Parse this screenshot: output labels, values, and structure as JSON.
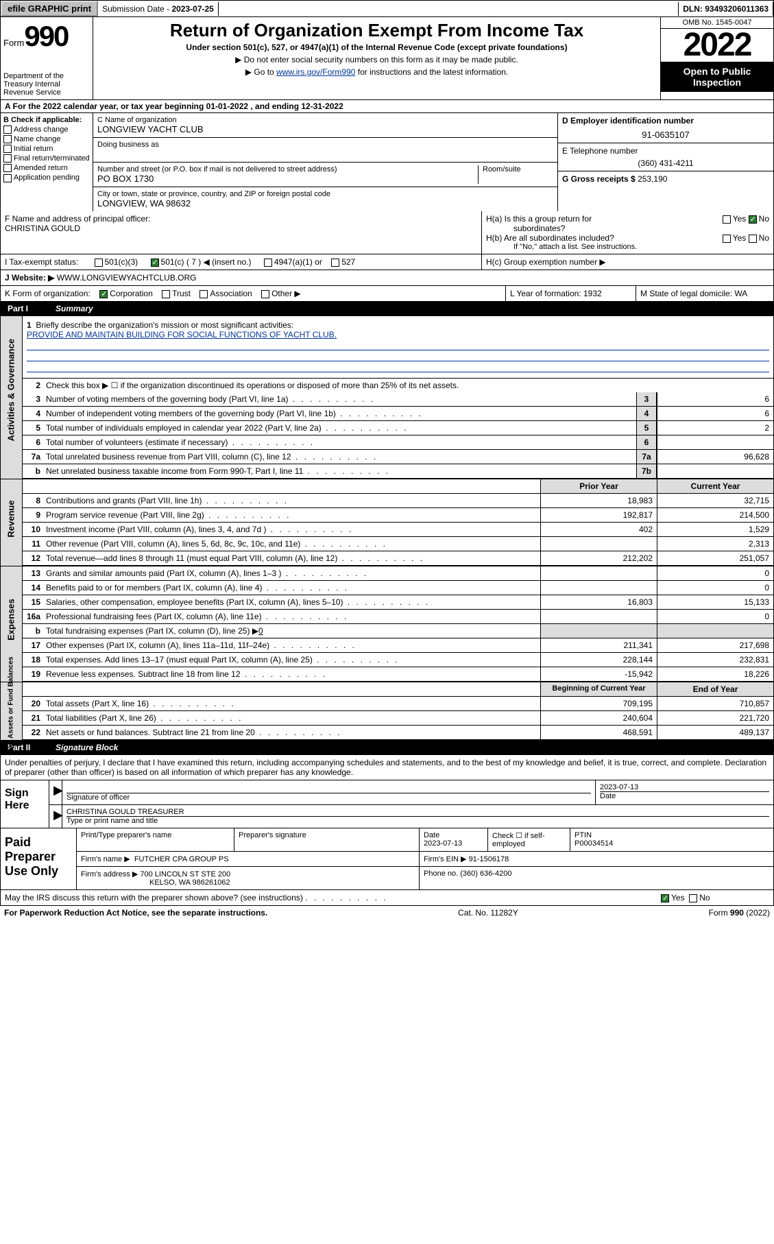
{
  "topbar": {
    "efile": "efile GRAPHIC print",
    "subdate_label": "Submission Date - ",
    "subdate": "2023-07-25",
    "dln": "DLN: 93493206011363"
  },
  "header": {
    "form_label": "Form",
    "form_num": "990",
    "dept": "Department of the Treasury Internal Revenue Service",
    "title": "Return of Organization Exempt From Income Tax",
    "sub": "Under section 501(c), 527, or 4947(a)(1) of the Internal Revenue Code (except private foundations)",
    "note1": "▶ Do not enter social security numbers on this form as it may be made public.",
    "note2_pre": "▶ Go to ",
    "note2_link": "www.irs.gov/Form990",
    "note2_post": " for instructions and the latest information.",
    "omb": "OMB No. 1545-0047",
    "year": "2022",
    "inspect": "Open to Public Inspection"
  },
  "row_a": "A For the 2022 calendar year, or tax year beginning 01-01-2022    , and ending 12-31-2022",
  "col_b": {
    "hdr": "B Check if applicable:",
    "items": [
      "Address change",
      "Name change",
      "Initial return",
      "Final return/terminated",
      "Amended return",
      "Application pending"
    ]
  },
  "org": {
    "c_label": "C Name of organization",
    "name": "LONGVIEW YACHT CLUB",
    "dba_label": "Doing business as",
    "addr_label": "Number and street (or P.O. box if mail is not delivered to street address)",
    "room_label": "Room/suite",
    "addr": "PO BOX 1730",
    "city_label": "City or town, state or province, country, and ZIP or foreign postal code",
    "city": "LONGVIEW, WA  98632"
  },
  "right": {
    "d_label": "D Employer identification number",
    "ein": "91-0635107",
    "e_label": "E Telephone number",
    "phone": "(360) 431-4211",
    "g_label": "G Gross receipts $ ",
    "gross": "253,190"
  },
  "officer": {
    "f_label": "F Name and address of principal officer:",
    "name": "CHRISTINA GOULD"
  },
  "h": {
    "a": "H(a)  Is this a group return for",
    "a2": "subordinates?",
    "b": "H(b)  Are all subordinates included?",
    "b_note": "If \"No,\" attach a list. See instructions.",
    "c": "H(c)  Group exemption number ▶"
  },
  "i": {
    "label": "I   Tax-exempt status:",
    "o1": "501(c)(3)",
    "o2": "501(c) ( 7 ) ◀ (insert no.)",
    "o3": "4947(a)(1) or",
    "o4": "527"
  },
  "j": {
    "label": "J   Website: ▶",
    "val": "WWW.LONGVIEWYACHTCLUB.ORG"
  },
  "k": {
    "label": "K Form of organization:",
    "o1": "Corporation",
    "o2": "Trust",
    "o3": "Association",
    "o4": "Other ▶"
  },
  "l": {
    "label": "L Year of formation: ",
    "val": "1932"
  },
  "m": {
    "label": "M State of legal domicile: ",
    "val": "WA"
  },
  "part1": {
    "num": "Part I",
    "title": "Summary"
  },
  "briefly": {
    "num": "1",
    "label": "Briefly describe the organization's mission or most significant activities:",
    "text": "PROVIDE AND MAINTAIN BUILDING FOR SOCIAL FUNCTIONS OF YACHT CLUB."
  },
  "line2": {
    "num": "2",
    "text": "Check this box ▶ ☐  if the organization discontinued its operations or disposed of more than 25% of its net assets."
  },
  "lines_gov": [
    {
      "n": "3",
      "d": "Number of voting members of the governing body (Part VI, line 1a)",
      "r": "3",
      "v": "6"
    },
    {
      "n": "4",
      "d": "Number of independent voting members of the governing body (Part VI, line 1b)",
      "r": "4",
      "v": "6"
    },
    {
      "n": "5",
      "d": "Total number of individuals employed in calendar year 2022 (Part V, line 2a)",
      "r": "5",
      "v": "2"
    },
    {
      "n": "6",
      "d": "Total number of volunteers (estimate if necessary)",
      "r": "6",
      "v": ""
    },
    {
      "n": "7a",
      "d": "Total unrelated business revenue from Part VIII, column (C), line 12",
      "r": "7a",
      "v": "96,628"
    },
    {
      "n": "b",
      "d": "Net unrelated business taxable income from Form 990-T, Part I, line 11",
      "r": "7b",
      "v": ""
    }
  ],
  "col_hdr": {
    "prior": "Prior Year",
    "current": "Current Year"
  },
  "lines_rev": [
    {
      "n": "8",
      "d": "Contributions and grants (Part VIII, line 1h)",
      "p": "18,983",
      "c": "32,715"
    },
    {
      "n": "9",
      "d": "Program service revenue (Part VIII, line 2g)",
      "p": "192,817",
      "c": "214,500"
    },
    {
      "n": "10",
      "d": "Investment income (Part VIII, column (A), lines 3, 4, and 7d )",
      "p": "402",
      "c": "1,529"
    },
    {
      "n": "11",
      "d": "Other revenue (Part VIII, column (A), lines 5, 6d, 8c, 9c, 10c, and 11e)",
      "p": "",
      "c": "2,313"
    },
    {
      "n": "12",
      "d": "Total revenue—add lines 8 through 11 (must equal Part VIII, column (A), line 12)",
      "p": "212,202",
      "c": "251,057"
    }
  ],
  "lines_exp": [
    {
      "n": "13",
      "d": "Grants and similar amounts paid (Part IX, column (A), lines 1–3 )",
      "p": "",
      "c": "0"
    },
    {
      "n": "14",
      "d": "Benefits paid to or for members (Part IX, column (A), line 4)",
      "p": "",
      "c": "0"
    },
    {
      "n": "15",
      "d": "Salaries, other compensation, employee benefits (Part IX, column (A), lines 5–10)",
      "p": "16,803",
      "c": "15,133"
    },
    {
      "n": "16a",
      "d": "Professional fundraising fees (Part IX, column (A), line 11e)",
      "p": "",
      "c": "0"
    }
  ],
  "line16b": {
    "n": "b",
    "d": "Total fundraising expenses (Part IX, column (D), line 25) ▶",
    "v": "0"
  },
  "lines_exp2": [
    {
      "n": "17",
      "d": "Other expenses (Part IX, column (A), lines 11a–11d, 11f–24e)",
      "p": "211,341",
      "c": "217,698"
    },
    {
      "n": "18",
      "d": "Total expenses. Add lines 13–17 (must equal Part IX, column (A), line 25)",
      "p": "228,144",
      "c": "232,831"
    },
    {
      "n": "19",
      "d": "Revenue less expenses. Subtract line 18 from line 12",
      "p": "-15,942",
      "c": "18,226"
    }
  ],
  "col_hdr2": {
    "begin": "Beginning of Current Year",
    "end": "End of Year"
  },
  "lines_net": [
    {
      "n": "20",
      "d": "Total assets (Part X, line 16)",
      "p": "709,195",
      "c": "710,857"
    },
    {
      "n": "21",
      "d": "Total liabilities (Part X, line 26)",
      "p": "240,604",
      "c": "221,720"
    },
    {
      "n": "22",
      "d": "Net assets or fund balances. Subtract line 21 from line 20",
      "p": "468,591",
      "c": "489,137"
    }
  ],
  "part2": {
    "num": "Part II",
    "title": "Signature Block"
  },
  "sig_text": "Under penalties of perjury, I declare that I have examined this return, including accompanying schedules and statements, and to the best of my knowledge and belief, it is true, correct, and complete. Declaration of preparer (other than officer) is based on all information of which preparer has any knowledge.",
  "sign": {
    "label": "Sign Here",
    "sig_label": "Signature of officer",
    "date": "2023-07-13",
    "date_label": "Date",
    "name": "CHRISTINA GOULD  TREASURER",
    "name_label": "Type or print name and title"
  },
  "prep": {
    "label": "Paid Preparer Use Only",
    "h1": "Print/Type preparer's name",
    "h2": "Preparer's signature",
    "h3": "Date",
    "h3v": "2023-07-13",
    "h4": "Check ☐ if self-employed",
    "h5": "PTIN",
    "h5v": "P00034514",
    "firm_label": "Firm's name    ▶",
    "firm": "FUTCHER CPA GROUP PS",
    "ein_label": "Firm's EIN ▶",
    "ein": "91-1506178",
    "addr_label": "Firm's address ▶",
    "addr1": "700 LINCOLN ST STE 200",
    "addr2": "KELSO, WA  986261062",
    "phone_label": "Phone no. ",
    "phone": "(360) 636-4200"
  },
  "discuss": "May the IRS discuss this return with the preparer shown above? (see instructions)",
  "footer": {
    "left": "For Paperwork Reduction Act Notice, see the separate instructions.",
    "mid": "Cat. No. 11282Y",
    "right": "Form 990 (2022)"
  },
  "vert": {
    "gov": "Activities & Governance",
    "rev": "Revenue",
    "exp": "Expenses",
    "net": "Net Assets or Fund Balances"
  },
  "yn": {
    "yes": "Yes",
    "no": "No"
  }
}
